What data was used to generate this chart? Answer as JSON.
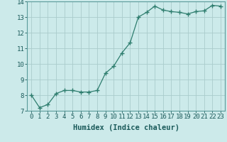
{
  "x": [
    0,
    1,
    2,
    3,
    4,
    5,
    6,
    7,
    8,
    9,
    10,
    11,
    12,
    13,
    14,
    15,
    16,
    17,
    18,
    19,
    20,
    21,
    22,
    23
  ],
  "y": [
    8.0,
    7.2,
    7.4,
    8.1,
    8.3,
    8.3,
    8.2,
    8.2,
    8.3,
    9.4,
    9.85,
    10.7,
    11.35,
    13.0,
    13.3,
    13.7,
    13.45,
    13.35,
    13.3,
    13.2,
    13.35,
    13.4,
    13.75,
    13.7
  ],
  "line_color": "#2e7d6e",
  "marker": "+",
  "marker_size": 4,
  "marker_lw": 1.0,
  "bg_color": "#cceaea",
  "grid_color": "#aacccc",
  "xlabel": "Humidex (Indice chaleur)",
  "xlabel_fontsize": 7.5,
  "tick_fontsize": 6.5,
  "ylim": [
    7,
    14
  ],
  "xlim": [
    -0.5,
    23.5
  ],
  "yticks": [
    7,
    8,
    9,
    10,
    11,
    12,
    13,
    14
  ],
  "xticks": [
    0,
    1,
    2,
    3,
    4,
    5,
    6,
    7,
    8,
    9,
    10,
    11,
    12,
    13,
    14,
    15,
    16,
    17,
    18,
    19,
    20,
    21,
    22,
    23
  ]
}
